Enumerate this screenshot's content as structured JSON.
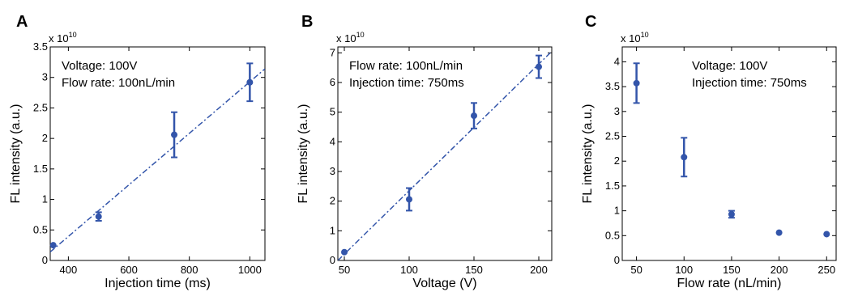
{
  "chart_data": [
    {
      "panel_label": "A",
      "type": "scatter",
      "xlabel": "Injection time (ms)",
      "ylabel": "FL intensity (a.u.)",
      "y_exponent_base": "x 10",
      "y_exponent_power": "10",
      "xlim": [
        340,
        1050
      ],
      "ylim": [
        0,
        3.5
      ],
      "xticks": [
        400,
        600,
        800,
        1000
      ],
      "yticks": [
        0,
        0.5,
        1,
        1.5,
        2,
        2.5,
        3,
        3.5
      ],
      "annotations": [
        "Voltage: 100V",
        "Flow rate: 100nL/min"
      ],
      "points": [
        {
          "x": 350,
          "y": 0.25,
          "err": 0
        },
        {
          "x": 500,
          "y": 0.72,
          "err": 0.07
        },
        {
          "x": 750,
          "y": 2.06,
          "err": 0.37
        },
        {
          "x": 1000,
          "y": 2.92,
          "err": 0.31
        }
      ],
      "fit": {
        "x": [
          340,
          1050
        ],
        "y": [
          0.14,
          3.14
        ]
      },
      "color": "#3355aa"
    },
    {
      "panel_label": "B",
      "type": "scatter",
      "xlabel": "Voltage (V)",
      "ylabel": "FL intensity (a.u.)",
      "y_exponent_base": "x 10",
      "y_exponent_power": "10",
      "xlim": [
        45,
        210
      ],
      "ylim": [
        0,
        7.2
      ],
      "xticks": [
        50,
        100,
        150,
        200
      ],
      "yticks": [
        0,
        1,
        2,
        3,
        4,
        5,
        6,
        7
      ],
      "annotations": [
        "Flow rate: 100nL/min",
        "Injection time: 750ms"
      ],
      "points": [
        {
          "x": 50,
          "y": 0.28,
          "err": 0
        },
        {
          "x": 100,
          "y": 2.06,
          "err": 0.38
        },
        {
          "x": 150,
          "y": 4.88,
          "err": 0.43
        },
        {
          "x": 200,
          "y": 6.53,
          "err": 0.38
        }
      ],
      "fit": {
        "x": [
          45,
          210
        ],
        "y": [
          0.0,
          7.05
        ]
      },
      "color": "#3355aa"
    },
    {
      "panel_label": "C",
      "type": "scatter",
      "xlabel": "Flow rate (nL/min)",
      "ylabel": "FL intensity (a.u.)",
      "y_exponent_base": "x 10",
      "y_exponent_power": "10",
      "xlim": [
        35,
        260
      ],
      "ylim": [
        0,
        4.3
      ],
      "xticks": [
        50,
        100,
        150,
        200,
        250
      ],
      "yticks": [
        0,
        0.5,
        1,
        1.5,
        2,
        2.5,
        3,
        3.5,
        4
      ],
      "annotations": [
        "Voltage: 100V",
        "Injection time: 750ms"
      ],
      "points": [
        {
          "x": 50,
          "y": 3.57,
          "err": 0.4
        },
        {
          "x": 100,
          "y": 2.08,
          "err": 0.39
        },
        {
          "x": 150,
          "y": 0.93,
          "err": 0.07
        },
        {
          "x": 200,
          "y": 0.56,
          "err": 0
        },
        {
          "x": 250,
          "y": 0.53,
          "err": 0
        }
      ],
      "fit": null,
      "color": "#3355aa"
    }
  ]
}
